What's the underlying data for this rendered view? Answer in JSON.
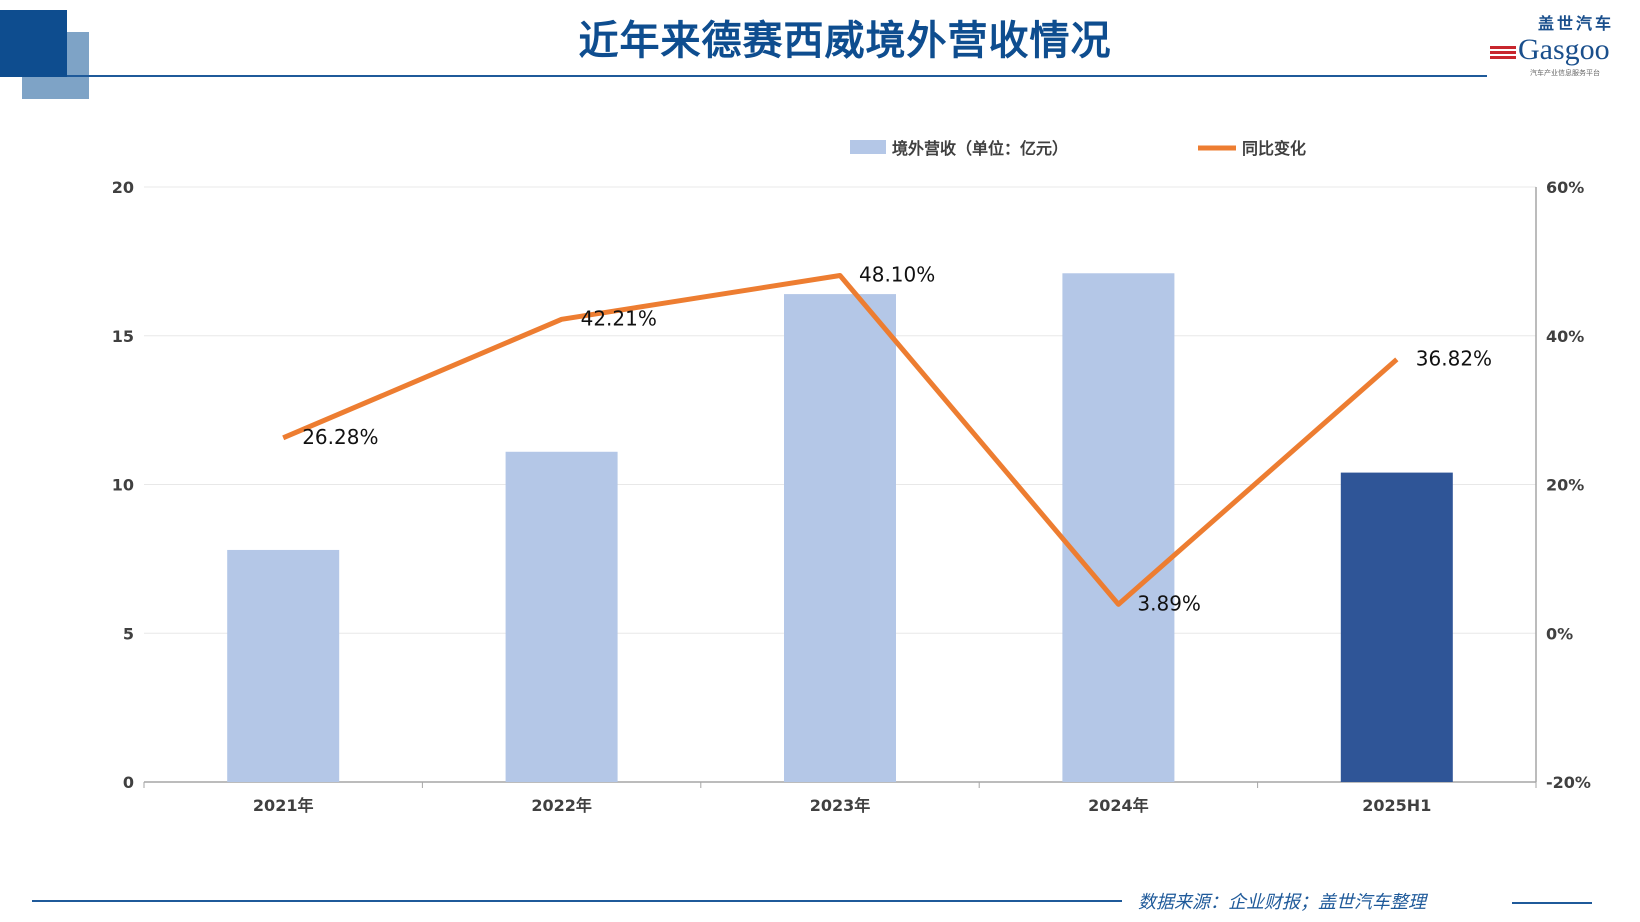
{
  "title": "近年来德赛西威境外营收情况",
  "logo": {
    "cn": "盖世汽车",
    "en": "Gasgoo",
    "tagline": "汽车产业信息服务平台"
  },
  "source": "数据来源：企业财报；盖世汽车整理",
  "colors": {
    "bar": "#b4c7e7",
    "bar_highlight": "#2f5597",
    "line": "#ed7d31",
    "title": "#0e4d8f"
  },
  "chart_data": {
    "type": "bar+line",
    "categories": [
      "2021年",
      "2022年",
      "2023年",
      "2024年",
      "2025H1"
    ],
    "series": [
      {
        "name": "境外营收（单位：亿元）",
        "type": "bar",
        "axis": "left",
        "values": [
          7.8,
          11.1,
          16.4,
          17.1,
          10.4
        ]
      },
      {
        "name": "同比变化",
        "type": "line",
        "axis": "right",
        "values": [
          26.28,
          42.21,
          48.1,
          3.89,
          36.82
        ],
        "labels": [
          "26.28%",
          "42.21%",
          "48.10%",
          "3.89%",
          "36.82%"
        ]
      }
    ],
    "left_axis": {
      "ylim": [
        0,
        20
      ],
      "ticks": [
        "0",
        "5",
        "10",
        "15",
        "20"
      ]
    },
    "right_axis": {
      "ylim": [
        -20,
        60
      ],
      "ticks": [
        "-20%",
        "0%",
        "20%",
        "40%",
        "60%"
      ]
    },
    "legend_position": "top-center",
    "grid": true
  }
}
